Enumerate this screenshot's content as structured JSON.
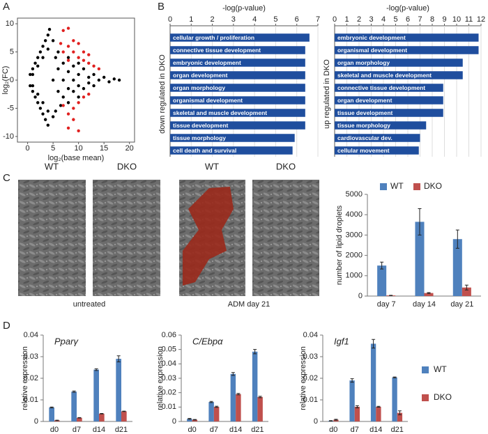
{
  "panel_labels": [
    "A",
    "B",
    "C",
    "D"
  ],
  "micrographs": {
    "labels": [
      "WT",
      "DKO",
      "WT",
      "DKO"
    ],
    "captions": [
      "untreated",
      "ADM day 21"
    ]
  },
  "chart_data": [
    {
      "type": "scatter",
      "xlabel": "log₂(base mean)",
      "ylabel": "log₂(FC)",
      "xlim": [
        -2,
        21
      ],
      "ylim": [
        -11,
        11
      ],
      "xticks": [
        0,
        5,
        10,
        15,
        20
      ],
      "yticks": [
        -10,
        -5,
        0,
        5,
        10
      ],
      "series": [
        {
          "color": "#000000",
          "x": [
            0.5,
            1,
            1.5,
            2,
            2.5,
            3,
            3.5,
            4,
            4.3,
            1,
            2,
            3,
            4,
            5,
            0.5,
            1,
            1.5,
            2,
            2.5,
            3,
            3.5,
            4,
            1,
            2,
            3,
            4,
            5,
            5,
            6,
            6,
            7,
            7,
            7,
            8,
            8,
            9,
            9,
            9,
            10,
            10,
            11,
            11,
            12,
            12,
            13,
            13,
            14,
            15,
            16,
            17,
            5.5,
            6.5,
            8,
            8,
            10,
            10,
            6,
            5.5,
            18
          ],
          "y": [
            1,
            2,
            3,
            4,
            5,
            6,
            7,
            8,
            9,
            1,
            2.5,
            4,
            5.5,
            7,
            -1,
            -2,
            -3,
            -4,
            -5,
            -6,
            -7,
            -8,
            -1,
            -2.5,
            -4,
            -5.5,
            -6.5,
            0,
            2,
            -2,
            3,
            -3,
            0,
            1.5,
            -1.5,
            2.5,
            -2,
            0,
            1,
            -1,
            2,
            -1.5,
            0.5,
            -0.5,
            1,
            -1,
            0,
            0.5,
            -0.3,
            0.2,
            4,
            -4.5,
            4,
            -4,
            3,
            -3,
            5,
            -5.5,
            0
          ]
        },
        {
          "color": "#e0201f",
          "x": [
            7,
            8,
            8,
            9,
            9,
            10,
            10,
            11,
            11,
            12,
            12,
            13,
            7,
            6.5,
            8,
            14,
            7,
            8,
            9,
            10,
            9,
            11,
            12,
            8,
            10
          ],
          "y": [
            8.8,
            9.2,
            6,
            7,
            5,
            6.5,
            4,
            5,
            3.5,
            4.5,
            3,
            2.5,
            5,
            6.5,
            3.5,
            2,
            -4.5,
            -6,
            -5,
            -4,
            -7,
            -3,
            -2.5,
            -8.5,
            -9
          ]
        }
      ]
    },
    {
      "type": "barh",
      "xlabel": "-log(p-value)",
      "ylabel": "down regulated in DKO",
      "color": "#1f4e9e",
      "grid": true,
      "xlim": [
        0,
        7
      ],
      "xticks": [
        0,
        1,
        2,
        3,
        4,
        5,
        6,
        7
      ],
      "categories": [
        "cellular growth / proliferation",
        "connective tissue development",
        "embryonic development",
        "organ development",
        "organ morphology",
        "organismal development",
        "skeletal and muscle development",
        "tissue development",
        "tissue morphology",
        "cell death and survival"
      ],
      "values": [
        6.6,
        6.4,
        6.4,
        6.4,
        6.4,
        6.4,
        6.4,
        6.4,
        5.9,
        5.8
      ]
    },
    {
      "type": "barh",
      "xlabel": "-log(p-value)",
      "ylabel": "up regulated in DKO",
      "color": "#1f4e9e",
      "grid": true,
      "xlim": [
        0,
        12
      ],
      "xticks": [
        0,
        1,
        2,
        3,
        4,
        5,
        6,
        7,
        8,
        9,
        10,
        11,
        12
      ],
      "categories": [
        "embryonic development",
        "organismal development",
        "organ morphology",
        "skeletal and muscle development",
        "connective tissue development",
        "organ development",
        "tissue development",
        "tissue morphology",
        "cardiovascular dev.",
        "cellular movement"
      ],
      "values": [
        11.8,
        11.8,
        10.5,
        10.5,
        8.9,
        8.9,
        8.9,
        7.5,
        7.0,
        6.9
      ]
    },
    {
      "type": "bar",
      "ylabel": "number of lipid droplets",
      "legend": "top",
      "ylim": [
        0,
        5000
      ],
      "yticks": [
        0,
        1000,
        2000,
        3000,
        4000,
        5000
      ],
      "categories": [
        "day 7",
        "day 14",
        "day 21"
      ],
      "series": [
        {
          "name": "WT",
          "color": "#4f81bd",
          "values": [
            1500,
            3650,
            2800
          ],
          "errors": [
            170,
            650,
            450
          ]
        },
        {
          "name": "DKO",
          "color": "#c0504d",
          "values": [
            30,
            150,
            420
          ],
          "errors": [
            10,
            20,
            120
          ]
        }
      ]
    },
    {
      "type": "bar",
      "title": "Pparγ",
      "ylabel": "relative expression",
      "ylim": [
        0,
        0.04
      ],
      "yticks": [
        0,
        0.01,
        0.02,
        0.03,
        0.04
      ],
      "categories": [
        "d0",
        "d7",
        "d14",
        "d21"
      ],
      "series": [
        {
          "color": "#4f81bd",
          "values": [
            0.0065,
            0.0138,
            0.024,
            0.029
          ],
          "errors": [
            0.0002,
            0.0003,
            0.0004,
            0.0014
          ]
        },
        {
          "color": "#c0504d",
          "values": [
            0.0005,
            0.0017,
            0.0036,
            0.0047
          ],
          "errors": [
            0.0001,
            0.0001,
            0.0001,
            0.0001
          ]
        }
      ]
    },
    {
      "type": "bar",
      "title": "C/Ebpα",
      "ylabel": "relative expression",
      "ylim": [
        0,
        0.06
      ],
      "yticks": [
        0,
        0.01,
        0.02,
        0.03,
        0.04,
        0.05,
        0.06
      ],
      "categories": [
        "d0",
        "d7",
        "d14",
        "d21"
      ],
      "series": [
        {
          "color": "#4f81bd",
          "values": [
            0.0018,
            0.0135,
            0.033,
            0.0485
          ],
          "errors": [
            0.0003,
            0.0004,
            0.001,
            0.0015
          ]
        },
        {
          "color": "#c0504d",
          "values": [
            0.0012,
            0.0102,
            0.019,
            0.017
          ],
          "errors": [
            0.0002,
            0.0004,
            0.0005,
            0.0005
          ]
        }
      ]
    },
    {
      "type": "bar",
      "title": "Igf1",
      "ylabel": "relative expression",
      "legend": "right",
      "ylim": [
        0,
        0.04
      ],
      "yticks": [
        0,
        0.01,
        0.02,
        0.03,
        0.04
      ],
      "categories": [
        "d0",
        "d7",
        "d14",
        "d21"
      ],
      "series": [
        {
          "name": "WT",
          "color": "#4f81bd",
          "values": [
            0.0003,
            0.019,
            0.036,
            0.0204
          ],
          "errors": [
            0.0001,
            0.0008,
            0.002,
            0.0002
          ]
        },
        {
          "name": "DKO",
          "color": "#c0504d",
          "values": [
            0.0008,
            0.0068,
            0.0068,
            0.004
          ],
          "errors": [
            0.0002,
            0.0005,
            0.0002,
            0.0009
          ]
        }
      ]
    }
  ]
}
